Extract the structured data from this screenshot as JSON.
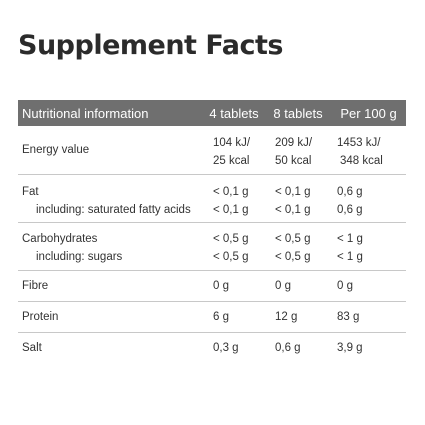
{
  "title": "Supplement Facts",
  "columns": [
    "Nutritional information",
    "4 tablets",
    "8 tablets",
    "Per 100 g"
  ],
  "energy": {
    "label": "Energy value",
    "t4": [
      "104 kJ/",
      "25 kcal"
    ],
    "t8": [
      "209 kJ/",
      "50 kcal"
    ],
    "p100": [
      "1453 kJ/",
      "348 kcal"
    ]
  },
  "fat": {
    "label": "Fat",
    "t4": "< 0,1 g",
    "t8": "< 0,1 g",
    "p100": "0,6 g",
    "sub": {
      "label": "including: saturated fatty acids",
      "t4": "< 0,1 g",
      "t8": "< 0,1 g",
      "p100": "0,6 g"
    }
  },
  "carbs": {
    "label": "Carbohydrates",
    "t4": "< 0,5 g",
    "t8": "< 0,5 g",
    "p100": "< 1 g",
    "sub": {
      "label": "including: sugars",
      "t4": "< 0,5 g",
      "t8": "< 0,5 g",
      "p100": "< 1 g"
    }
  },
  "fibre": {
    "label": "Fibre",
    "t4": "0 g",
    "t8": "0 g",
    "p100": "0 g"
  },
  "protein": {
    "label": "Protein",
    "t4": "6 g",
    "t8": "12 g",
    "p100": "83 g"
  },
  "salt": {
    "label": "Salt",
    "t4": "0,3 g",
    "t8": "0,6 g",
    "p100": "3,9 g"
  }
}
